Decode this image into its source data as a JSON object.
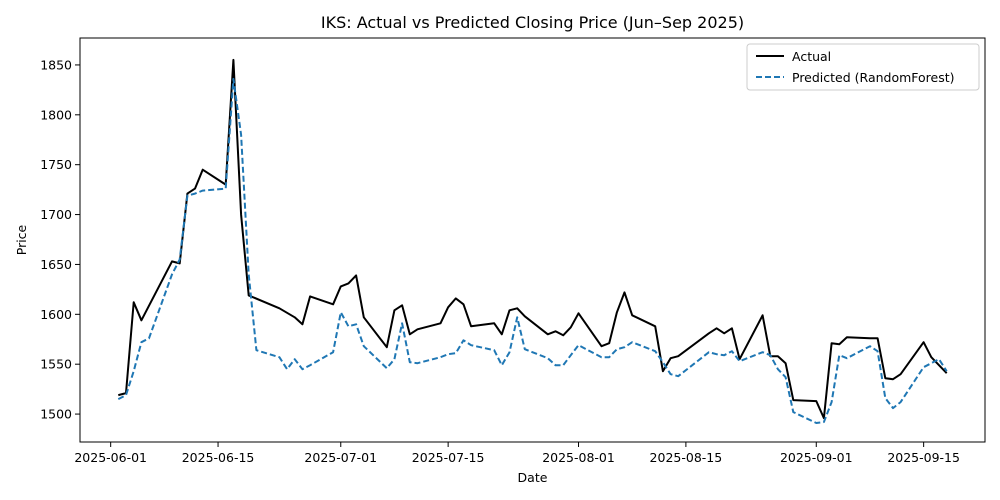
{
  "chart_data": {
    "type": "line",
    "title": "IKS: Actual vs Predicted Closing Price (Jun–Sep 2025)",
    "xlabel": "Date",
    "ylabel": "Price",
    "xlim": [
      "2025-05-28",
      "2025-09-23"
    ],
    "ylim": [
      1472,
      1877
    ],
    "x_ticks": [
      {
        "date": "2025-06-01",
        "label": "2025-06-01"
      },
      {
        "date": "2025-06-15",
        "label": "2025-06-15"
      },
      {
        "date": "2025-07-01",
        "label": "2025-07-01"
      },
      {
        "date": "2025-07-15",
        "label": "2025-07-15"
      },
      {
        "date": "2025-08-01",
        "label": "2025-08-01"
      },
      {
        "date": "2025-08-15",
        "label": "2025-08-15"
      },
      {
        "date": "2025-09-01",
        "label": "2025-09-01"
      },
      {
        "date": "2025-09-15",
        "label": "2025-09-15"
      }
    ],
    "y_ticks": [
      1500,
      1550,
      1600,
      1650,
      1700,
      1750,
      1800,
      1850
    ],
    "grid": false,
    "legend_position": "top-right",
    "series": [
      {
        "name": "Actual",
        "color": "#000000",
        "style": "solid",
        "points": [
          [
            "2025-06-02",
            1519
          ],
          [
            "2025-06-03",
            1521
          ],
          [
            "2025-06-04",
            1612
          ],
          [
            "2025-06-05",
            1594
          ],
          [
            "2025-06-09",
            1653
          ],
          [
            "2025-06-10",
            1651
          ],
          [
            "2025-06-11",
            1721
          ],
          [
            "2025-06-12",
            1726
          ],
          [
            "2025-06-13",
            1745
          ],
          [
            "2025-06-16",
            1730
          ],
          [
            "2025-06-17",
            1855
          ],
          [
            "2025-06-18",
            1700
          ],
          [
            "2025-06-19",
            1619
          ],
          [
            "2025-06-23",
            1606
          ],
          [
            "2025-06-25",
            1597
          ],
          [
            "2025-06-26",
            1590
          ],
          [
            "2025-06-27",
            1618
          ],
          [
            "2025-06-30",
            1610
          ],
          [
            "2025-07-01",
            1628
          ],
          [
            "2025-07-02",
            1631
          ],
          [
            "2025-07-03",
            1639
          ],
          [
            "2025-07-04",
            1597
          ],
          [
            "2025-07-07",
            1567
          ],
          [
            "2025-07-08",
            1604
          ],
          [
            "2025-07-09",
            1609
          ],
          [
            "2025-07-10",
            1580
          ],
          [
            "2025-07-11",
            1585
          ],
          [
            "2025-07-14",
            1591
          ],
          [
            "2025-07-15",
            1607
          ],
          [
            "2025-07-16",
            1616
          ],
          [
            "2025-07-17",
            1610
          ],
          [
            "2025-07-18",
            1588
          ],
          [
            "2025-07-21",
            1591
          ],
          [
            "2025-07-22",
            1580
          ],
          [
            "2025-07-23",
            1604
          ],
          [
            "2025-07-24",
            1606
          ],
          [
            "2025-07-25",
            1598
          ],
          [
            "2025-07-28",
            1580
          ],
          [
            "2025-07-29",
            1583
          ],
          [
            "2025-07-30",
            1579
          ],
          [
            "2025-07-31",
            1587
          ],
          [
            "2025-08-01",
            1601
          ],
          [
            "2025-08-04",
            1568
          ],
          [
            "2025-08-05",
            1571
          ],
          [
            "2025-08-06",
            1602
          ],
          [
            "2025-08-07",
            1622
          ],
          [
            "2025-08-08",
            1599
          ],
          [
            "2025-08-11",
            1588
          ],
          [
            "2025-08-12",
            1543
          ],
          [
            "2025-08-13",
            1556
          ],
          [
            "2025-08-14",
            1558
          ],
          [
            "2025-08-18",
            1581
          ],
          [
            "2025-08-19",
            1586
          ],
          [
            "2025-08-20",
            1581
          ],
          [
            "2025-08-21",
            1586
          ],
          [
            "2025-08-22",
            1555
          ],
          [
            "2025-08-25",
            1599
          ],
          [
            "2025-08-26",
            1558
          ],
          [
            "2025-08-27",
            1558
          ],
          [
            "2025-08-28",
            1551
          ],
          [
            "2025-08-29",
            1514
          ],
          [
            "2025-09-01",
            1513
          ],
          [
            "2025-09-02",
            1496
          ],
          [
            "2025-09-03",
            1571
          ],
          [
            "2025-09-04",
            1570
          ],
          [
            "2025-09-05",
            1577
          ],
          [
            "2025-09-08",
            1576
          ],
          [
            "2025-09-09",
            1576
          ],
          [
            "2025-09-10",
            1536
          ],
          [
            "2025-09-11",
            1535
          ],
          [
            "2025-09-12",
            1540
          ],
          [
            "2025-09-15",
            1572
          ],
          [
            "2025-09-16",
            1557
          ],
          [
            "2025-09-18",
            1541
          ]
        ]
      },
      {
        "name": "Predicted (RandomForest)",
        "color": "#1f77b4",
        "style": "dashed",
        "points": [
          [
            "2025-06-02",
            1515
          ],
          [
            "2025-06-03",
            1519
          ],
          [
            "2025-06-04",
            1543
          ],
          [
            "2025-06-05",
            1572
          ],
          [
            "2025-06-06",
            1576
          ],
          [
            "2025-06-09",
            1640
          ],
          [
            "2025-06-10",
            1655
          ],
          [
            "2025-06-11",
            1719
          ],
          [
            "2025-06-12",
            1721
          ],
          [
            "2025-06-13",
            1724
          ],
          [
            "2025-06-16",
            1726
          ],
          [
            "2025-06-17",
            1836
          ],
          [
            "2025-06-18",
            1780
          ],
          [
            "2025-06-19",
            1640
          ],
          [
            "2025-06-20",
            1564
          ],
          [
            "2025-06-23",
            1557
          ],
          [
            "2025-06-24",
            1545
          ],
          [
            "2025-06-25",
            1555
          ],
          [
            "2025-06-26",
            1545
          ],
          [
            "2025-06-27",
            1549
          ],
          [
            "2025-06-30",
            1562
          ],
          [
            "2025-07-01",
            1602
          ],
          [
            "2025-07-02",
            1588
          ],
          [
            "2025-07-03",
            1590
          ],
          [
            "2025-07-04",
            1568
          ],
          [
            "2025-07-07",
            1546
          ],
          [
            "2025-07-08",
            1555
          ],
          [
            "2025-07-09",
            1591
          ],
          [
            "2025-07-10",
            1552
          ],
          [
            "2025-07-11",
            1551
          ],
          [
            "2025-07-14",
            1557
          ],
          [
            "2025-07-15",
            1560
          ],
          [
            "2025-07-16",
            1561
          ],
          [
            "2025-07-17",
            1574
          ],
          [
            "2025-07-18",
            1569
          ],
          [
            "2025-07-21",
            1564
          ],
          [
            "2025-07-22",
            1549
          ],
          [
            "2025-07-23",
            1562
          ],
          [
            "2025-07-24",
            1597
          ],
          [
            "2025-07-25",
            1565
          ],
          [
            "2025-07-28",
            1556
          ],
          [
            "2025-07-29",
            1549
          ],
          [
            "2025-07-30",
            1549
          ],
          [
            "2025-07-31",
            1559
          ],
          [
            "2025-08-01",
            1569
          ],
          [
            "2025-08-04",
            1557
          ],
          [
            "2025-08-05",
            1557
          ],
          [
            "2025-08-06",
            1565
          ],
          [
            "2025-08-07",
            1567
          ],
          [
            "2025-08-08",
            1572
          ],
          [
            "2025-08-11",
            1563
          ],
          [
            "2025-08-12",
            1552
          ],
          [
            "2025-08-13",
            1540
          ],
          [
            "2025-08-14",
            1538
          ],
          [
            "2025-08-18",
            1562
          ],
          [
            "2025-08-19",
            1560
          ],
          [
            "2025-08-20",
            1559
          ],
          [
            "2025-08-21",
            1563
          ],
          [
            "2025-08-22",
            1553
          ],
          [
            "2025-08-25",
            1562
          ],
          [
            "2025-08-26",
            1559
          ],
          [
            "2025-08-27",
            1545
          ],
          [
            "2025-08-28",
            1537
          ],
          [
            "2025-08-29",
            1502
          ],
          [
            "2025-09-01",
            1491
          ],
          [
            "2025-09-02",
            1492
          ],
          [
            "2025-09-03",
            1512
          ],
          [
            "2025-09-04",
            1559
          ],
          [
            "2025-09-05",
            1556
          ],
          [
            "2025-09-08",
            1568
          ],
          [
            "2025-09-09",
            1563
          ],
          [
            "2025-09-10",
            1516
          ],
          [
            "2025-09-11",
            1506
          ],
          [
            "2025-09-12",
            1512
          ],
          [
            "2025-09-15",
            1547
          ],
          [
            "2025-09-16",
            1551
          ],
          [
            "2025-09-17",
            1555
          ],
          [
            "2025-09-18",
            1543
          ]
        ]
      }
    ]
  }
}
